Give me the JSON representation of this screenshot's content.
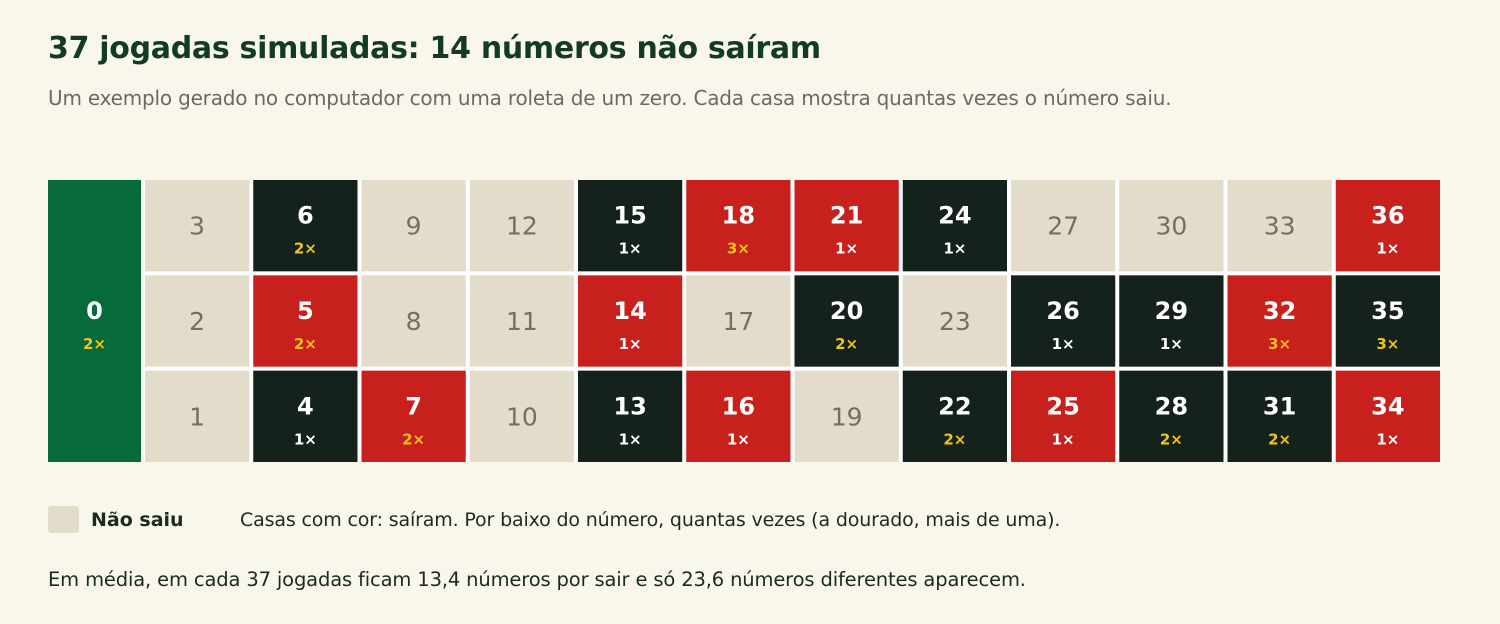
{
  "title": "37 jogadas simuladas: 14 números não saíram",
  "subtitle": "Um exemplo gerado no computador com uma roleta de um zero. Cada casa mostra quantas vezes o número saiu.",
  "legend": {
    "swatch_label": "Não saiu",
    "note": "Casas com cor: saíram. Por baixo do número, quantas vezes (a dourado, mais de uma)."
  },
  "footnote": "Em média, em cada 37 jogadas ficam 13,4 números por sair e só 23,6 números diferentes aparecem.",
  "colors": {
    "background": "#f9f6ec",
    "zero_green": "#076a3a",
    "red": "#c8201d",
    "black": "#14221b",
    "not_drawn": "#e4dccb",
    "gold": "#f2c31b",
    "title": "#123a26"
  },
  "chart_data": {
    "type": "table",
    "title": "37 jogadas simuladas: 14 números não saíram",
    "count_suffix": "×",
    "zero": {
      "number": 0,
      "count": 2
    },
    "rows": [
      [
        3,
        6,
        9,
        12,
        15,
        18,
        21,
        24,
        27,
        30,
        33,
        36
      ],
      [
        2,
        5,
        8,
        11,
        14,
        17,
        20,
        23,
        26,
        29,
        32,
        35
      ],
      [
        1,
        4,
        7,
        10,
        13,
        16,
        19,
        22,
        25,
        28,
        31,
        34
      ]
    ],
    "counts": {
      "0": 2,
      "1": 0,
      "2": 0,
      "3": 0,
      "4": 1,
      "5": 2,
      "6": 2,
      "7": 2,
      "8": 0,
      "9": 0,
      "10": 0,
      "11": 0,
      "12": 0,
      "13": 1,
      "14": 1,
      "15": 1,
      "16": 1,
      "17": 0,
      "18": 3,
      "19": 0,
      "20": 2,
      "21": 1,
      "22": 2,
      "23": 0,
      "24": 1,
      "25": 1,
      "26": 1,
      "27": 0,
      "28": 2,
      "29": 1,
      "30": 0,
      "31": 2,
      "32": 3,
      "33": 0,
      "34": 1,
      "35": 3,
      "36": 1
    },
    "red_numbers": [
      1,
      3,
      5,
      7,
      9,
      12,
      14,
      16,
      18,
      19,
      21,
      23,
      25,
      27,
      30,
      32,
      34,
      36
    ],
    "total_spins": 37,
    "numbers_not_drawn": 14
  }
}
